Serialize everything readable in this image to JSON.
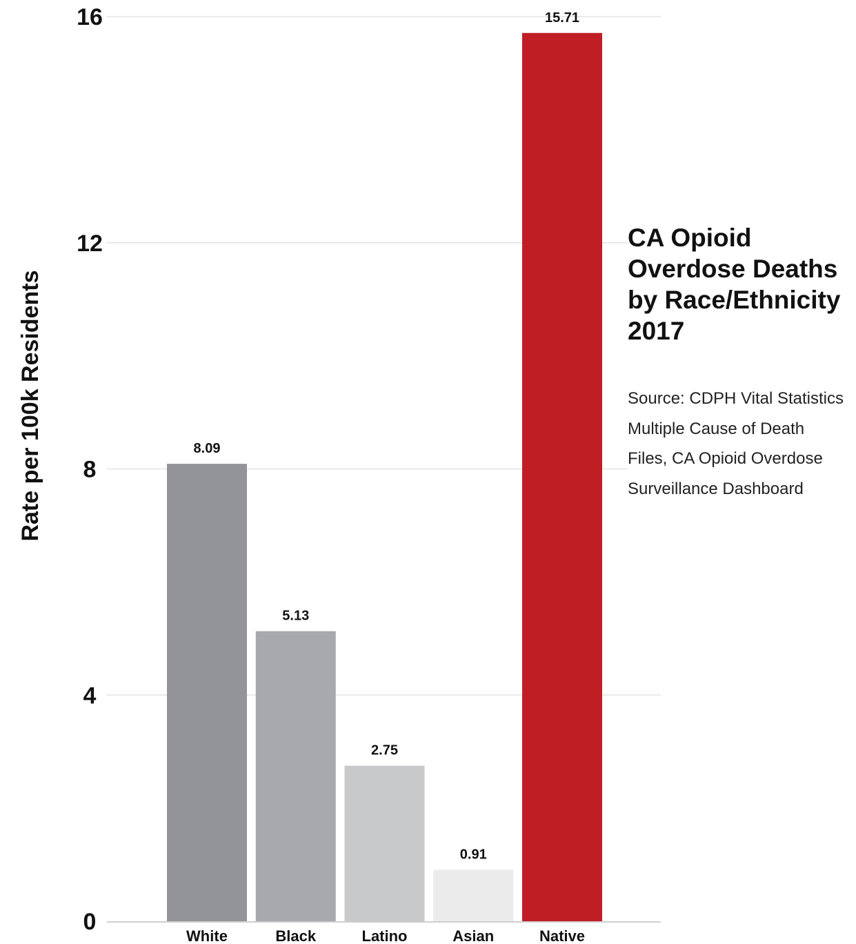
{
  "chart_data": {
    "type": "bar",
    "title": "CA Opioid Overdose Deaths by Race/Ethnicity 2017",
    "source": "Source: CDPH Vital Statistics Multiple Cause of Death Files, CA Opioid Overdose Surveillance Dashboard",
    "ylabel": "Rate per 100k Residents",
    "xlabel": "",
    "ylim": [
      0,
      16
    ],
    "yticks": [
      0,
      4,
      8,
      12,
      16
    ],
    "grid": true,
    "categories": [
      "White",
      "Black",
      "Latino",
      "Asian",
      "Native"
    ],
    "values": [
      8.09,
      5.13,
      2.75,
      0.91,
      15.71
    ],
    "value_labels": [
      "8.09",
      "5.13",
      "2.75",
      "0.91",
      "15.71"
    ],
    "bar_colors": [
      "#939498",
      "#a8a9ac",
      "#c8c9cb",
      "#ebebec",
      "#be1e24"
    ],
    "gridline_color": "#e3e3e3",
    "axis_color": "#cfcfcf"
  }
}
